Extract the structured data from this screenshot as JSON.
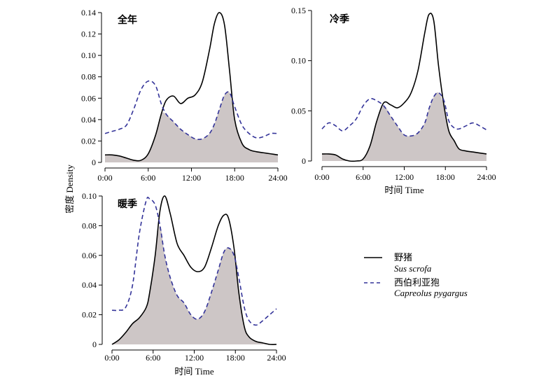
{
  "y_axis_label": "密度 Density",
  "chart_data": [
    {
      "type": "line",
      "title": "全年",
      "xlabel": "",
      "ylabel": "密度 Density",
      "xlim": [
        0,
        24
      ],
      "ylim": [
        0,
        0.14
      ],
      "x_ticks": [
        "0:00",
        "6:00",
        "12:00",
        "18:00",
        "24:00"
      ],
      "y_ticks": [
        "0",
        "0.02",
        "0.04",
        "0.06",
        "0.08",
        "0.10",
        "0.12",
        "0.14"
      ],
      "y_tick_values": [
        0,
        0.02,
        0.04,
        0.06,
        0.08,
        0.1,
        0.12,
        0.14
      ],
      "grid": false,
      "overlap_shaded": true,
      "x": [
        0,
        1,
        2,
        3,
        4,
        5,
        6,
        7,
        7.8,
        8.5,
        9.5,
        10.5,
        11.5,
        12.5,
        13.5,
        14.5,
        15.2,
        15.9,
        16.6,
        17.3,
        18,
        19,
        20,
        21,
        22,
        23,
        24
      ],
      "series": [
        {
          "name": "野猪",
          "style": "solid",
          "color": "#000000",
          "values": [
            0.007,
            0.007,
            0.006,
            0.004,
            0.002,
            0.002,
            0.008,
            0.025,
            0.045,
            0.058,
            0.062,
            0.055,
            0.06,
            0.063,
            0.075,
            0.105,
            0.13,
            0.14,
            0.128,
            0.085,
            0.04,
            0.018,
            0.012,
            0.01,
            0.009,
            0.008,
            0.007
          ]
        },
        {
          "name": "西伯利亚狍",
          "style": "dashed",
          "color": "#333399",
          "values": [
            0.027,
            0.029,
            0.031,
            0.035,
            0.05,
            0.068,
            0.076,
            0.072,
            0.055,
            0.045,
            0.038,
            0.031,
            0.026,
            0.022,
            0.022,
            0.027,
            0.036,
            0.05,
            0.063,
            0.065,
            0.052,
            0.035,
            0.027,
            0.023,
            0.024,
            0.027,
            0.027
          ]
        }
      ]
    },
    {
      "type": "line",
      "title": "冷季",
      "xlabel": "时间 Time",
      "ylabel": "",
      "xlim": [
        0,
        24
      ],
      "ylim": [
        0,
        0.15
      ],
      "x_ticks": [
        "0:00",
        "6:00",
        "12:00",
        "18:00",
        "24:00"
      ],
      "y_ticks": [
        "0",
        "0.05",
        "0.10",
        "0.15"
      ],
      "y_tick_values": [
        0,
        0.05,
        0.1,
        0.15
      ],
      "grid": false,
      "overlap_shaded": true,
      "x": [
        0,
        1,
        2,
        3,
        4,
        5,
        6,
        7,
        8,
        9,
        10,
        11,
        12,
        13,
        14,
        15,
        15.6,
        16.3,
        17,
        17.8,
        18.5,
        19.3,
        20,
        21,
        22,
        23,
        24
      ],
      "series": [
        {
          "name": "野猪",
          "style": "solid",
          "color": "#000000",
          "values": [
            0.007,
            0.007,
            0.006,
            0.002,
            0.0,
            0.0,
            0.002,
            0.015,
            0.04,
            0.058,
            0.056,
            0.053,
            0.058,
            0.068,
            0.09,
            0.128,
            0.146,
            0.14,
            0.095,
            0.055,
            0.03,
            0.02,
            0.012,
            0.01,
            0.009,
            0.008,
            0.007
          ]
        },
        {
          "name": "西伯利亚狍",
          "style": "dashed",
          "color": "#333399",
          "values": [
            0.032,
            0.038,
            0.035,
            0.03,
            0.035,
            0.042,
            0.055,
            0.062,
            0.06,
            0.055,
            0.045,
            0.035,
            0.026,
            0.025,
            0.028,
            0.038,
            0.052,
            0.064,
            0.068,
            0.06,
            0.04,
            0.033,
            0.032,
            0.035,
            0.038,
            0.035,
            0.031
          ]
        }
      ]
    },
    {
      "type": "line",
      "title": "暖季",
      "xlabel": "时间 Time",
      "ylabel": "",
      "xlim": [
        0,
        24
      ],
      "ylim": [
        0,
        0.1
      ],
      "x_ticks": [
        "0:00",
        "6:00",
        "12:00",
        "18:00",
        "24:00"
      ],
      "y_ticks": [
        "0",
        "0.02",
        "0.04",
        "0.06",
        "0.08",
        "0.10"
      ],
      "y_tick_values": [
        0,
        0.02,
        0.04,
        0.06,
        0.08,
        0.1
      ],
      "grid": false,
      "overlap_shaded": true,
      "x": [
        0,
        1,
        2,
        3,
        4,
        5,
        5.5,
        6.3,
        7,
        7.7,
        8.5,
        9.5,
        10.5,
        11.5,
        12.5,
        13.5,
        14.5,
        15.5,
        16.3,
        17,
        17.8,
        18.5,
        19.3,
        20,
        21,
        22,
        23,
        24
      ],
      "series": [
        {
          "name": "野猪",
          "style": "solid",
          "color": "#000000",
          "values": [
            0.0,
            0.003,
            0.008,
            0.014,
            0.018,
            0.025,
            0.035,
            0.06,
            0.09,
            0.1,
            0.088,
            0.068,
            0.06,
            0.052,
            0.049,
            0.052,
            0.065,
            0.08,
            0.087,
            0.085,
            0.065,
            0.035,
            0.012,
            0.005,
            0.002,
            0.001,
            0.0,
            0.0
          ]
        },
        {
          "name": "西伯利亚狍",
          "style": "dashed",
          "color": "#333399",
          "values": [
            0.023,
            0.023,
            0.025,
            0.04,
            0.075,
            0.097,
            0.098,
            0.094,
            0.08,
            0.06,
            0.045,
            0.033,
            0.028,
            0.02,
            0.017,
            0.022,
            0.035,
            0.05,
            0.062,
            0.065,
            0.06,
            0.045,
            0.025,
            0.016,
            0.013,
            0.016,
            0.02,
            0.024
          ]
        }
      ]
    }
  ],
  "legend": {
    "items": [
      {
        "label": "野猪",
        "sublabel": "Sus scrofa",
        "style": "solid",
        "color": "#000000"
      },
      {
        "label": "西伯利亚狍",
        "sublabel": "Capreolus pygargus",
        "style": "dashed",
        "color": "#333399"
      }
    ]
  },
  "colors": {
    "overlap_fill": "#cdc6c6",
    "axis": "#000000"
  }
}
